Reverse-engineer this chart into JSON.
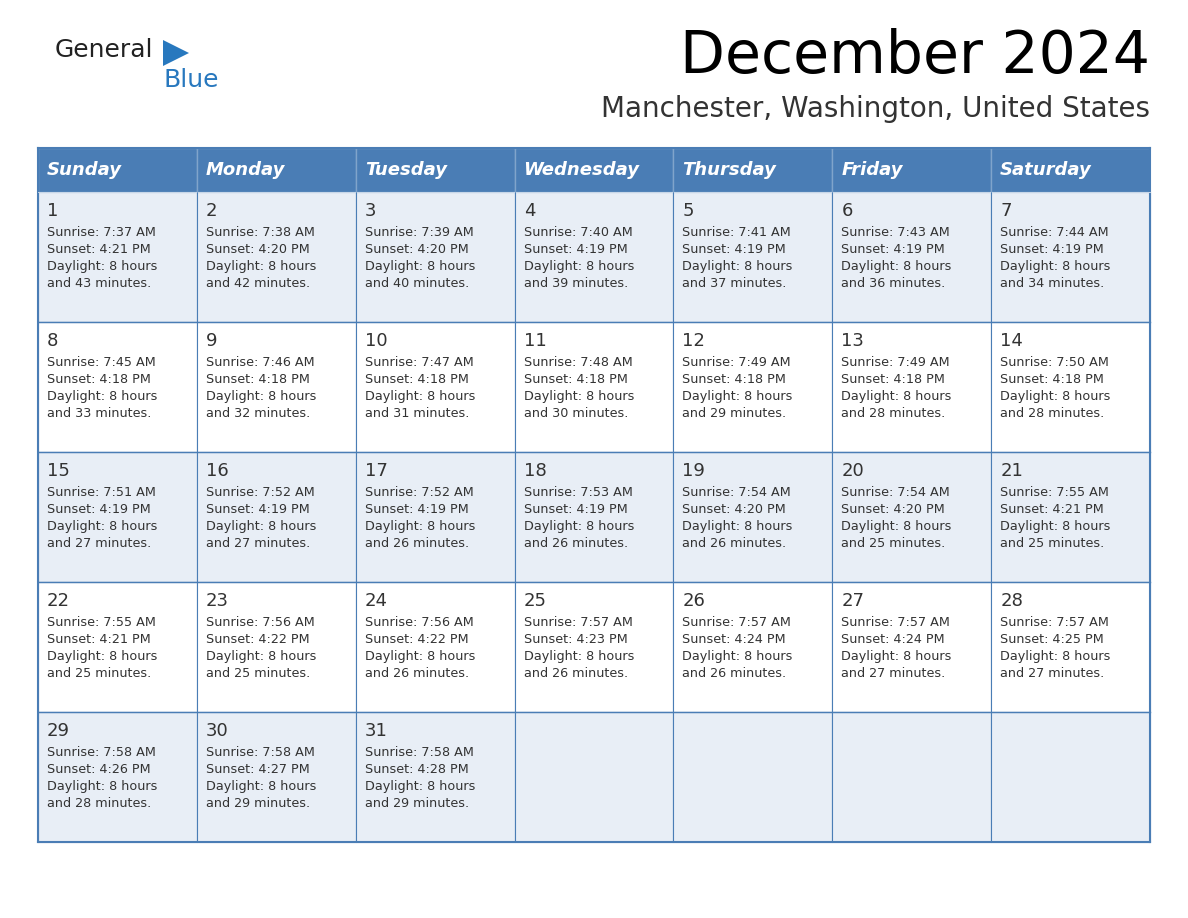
{
  "title": "December 2024",
  "subtitle": "Manchester, Washington, United States",
  "header_color": "#4a7db5",
  "header_text_color": "#ffffff",
  "cell_bg_even": "#e8eef6",
  "cell_bg_odd": "#ffffff",
  "border_color": "#4a7db5",
  "text_color": "#333333",
  "day_names": [
    "Sunday",
    "Monday",
    "Tuesday",
    "Wednesday",
    "Thursday",
    "Friday",
    "Saturday"
  ],
  "logo_general_color": "#222222",
  "logo_blue_color": "#2878be",
  "days_data": [
    {
      "day": 1,
      "col": 0,
      "row": 0,
      "sunrise": "7:37 AM",
      "sunset": "4:21 PM",
      "daylight": "8 hours and 43 minutes."
    },
    {
      "day": 2,
      "col": 1,
      "row": 0,
      "sunrise": "7:38 AM",
      "sunset": "4:20 PM",
      "daylight": "8 hours and 42 minutes."
    },
    {
      "day": 3,
      "col": 2,
      "row": 0,
      "sunrise": "7:39 AM",
      "sunset": "4:20 PM",
      "daylight": "8 hours and 40 minutes."
    },
    {
      "day": 4,
      "col": 3,
      "row": 0,
      "sunrise": "7:40 AM",
      "sunset": "4:19 PM",
      "daylight": "8 hours and 39 minutes."
    },
    {
      "day": 5,
      "col": 4,
      "row": 0,
      "sunrise": "7:41 AM",
      "sunset": "4:19 PM",
      "daylight": "8 hours and 37 minutes."
    },
    {
      "day": 6,
      "col": 5,
      "row": 0,
      "sunrise": "7:43 AM",
      "sunset": "4:19 PM",
      "daylight": "8 hours and 36 minutes."
    },
    {
      "day": 7,
      "col": 6,
      "row": 0,
      "sunrise": "7:44 AM",
      "sunset": "4:19 PM",
      "daylight": "8 hours and 34 minutes."
    },
    {
      "day": 8,
      "col": 0,
      "row": 1,
      "sunrise": "7:45 AM",
      "sunset": "4:18 PM",
      "daylight": "8 hours and 33 minutes."
    },
    {
      "day": 9,
      "col": 1,
      "row": 1,
      "sunrise": "7:46 AM",
      "sunset": "4:18 PM",
      "daylight": "8 hours and 32 minutes."
    },
    {
      "day": 10,
      "col": 2,
      "row": 1,
      "sunrise": "7:47 AM",
      "sunset": "4:18 PM",
      "daylight": "8 hours and 31 minutes."
    },
    {
      "day": 11,
      "col": 3,
      "row": 1,
      "sunrise": "7:48 AM",
      "sunset": "4:18 PM",
      "daylight": "8 hours and 30 minutes."
    },
    {
      "day": 12,
      "col": 4,
      "row": 1,
      "sunrise": "7:49 AM",
      "sunset": "4:18 PM",
      "daylight": "8 hours and 29 minutes."
    },
    {
      "day": 13,
      "col": 5,
      "row": 1,
      "sunrise": "7:49 AM",
      "sunset": "4:18 PM",
      "daylight": "8 hours and 28 minutes."
    },
    {
      "day": 14,
      "col": 6,
      "row": 1,
      "sunrise": "7:50 AM",
      "sunset": "4:18 PM",
      "daylight": "8 hours and 28 minutes."
    },
    {
      "day": 15,
      "col": 0,
      "row": 2,
      "sunrise": "7:51 AM",
      "sunset": "4:19 PM",
      "daylight": "8 hours and 27 minutes."
    },
    {
      "day": 16,
      "col": 1,
      "row": 2,
      "sunrise": "7:52 AM",
      "sunset": "4:19 PM",
      "daylight": "8 hours and 27 minutes."
    },
    {
      "day": 17,
      "col": 2,
      "row": 2,
      "sunrise": "7:52 AM",
      "sunset": "4:19 PM",
      "daylight": "8 hours and 26 minutes."
    },
    {
      "day": 18,
      "col": 3,
      "row": 2,
      "sunrise": "7:53 AM",
      "sunset": "4:19 PM",
      "daylight": "8 hours and 26 minutes."
    },
    {
      "day": 19,
      "col": 4,
      "row": 2,
      "sunrise": "7:54 AM",
      "sunset": "4:20 PM",
      "daylight": "8 hours and 26 minutes."
    },
    {
      "day": 20,
      "col": 5,
      "row": 2,
      "sunrise": "7:54 AM",
      "sunset": "4:20 PM",
      "daylight": "8 hours and 25 minutes."
    },
    {
      "day": 21,
      "col": 6,
      "row": 2,
      "sunrise": "7:55 AM",
      "sunset": "4:21 PM",
      "daylight": "8 hours and 25 minutes."
    },
    {
      "day": 22,
      "col": 0,
      "row": 3,
      "sunrise": "7:55 AM",
      "sunset": "4:21 PM",
      "daylight": "8 hours and 25 minutes."
    },
    {
      "day": 23,
      "col": 1,
      "row": 3,
      "sunrise": "7:56 AM",
      "sunset": "4:22 PM",
      "daylight": "8 hours and 25 minutes."
    },
    {
      "day": 24,
      "col": 2,
      "row": 3,
      "sunrise": "7:56 AM",
      "sunset": "4:22 PM",
      "daylight": "8 hours and 26 minutes."
    },
    {
      "day": 25,
      "col": 3,
      "row": 3,
      "sunrise": "7:57 AM",
      "sunset": "4:23 PM",
      "daylight": "8 hours and 26 minutes."
    },
    {
      "day": 26,
      "col": 4,
      "row": 3,
      "sunrise": "7:57 AM",
      "sunset": "4:24 PM",
      "daylight": "8 hours and 26 minutes."
    },
    {
      "day": 27,
      "col": 5,
      "row": 3,
      "sunrise": "7:57 AM",
      "sunset": "4:24 PM",
      "daylight": "8 hours and 27 minutes."
    },
    {
      "day": 28,
      "col": 6,
      "row": 3,
      "sunrise": "7:57 AM",
      "sunset": "4:25 PM",
      "daylight": "8 hours and 27 minutes."
    },
    {
      "day": 29,
      "col": 0,
      "row": 4,
      "sunrise": "7:58 AM",
      "sunset": "4:26 PM",
      "daylight": "8 hours and 28 minutes."
    },
    {
      "day": 30,
      "col": 1,
      "row": 4,
      "sunrise": "7:58 AM",
      "sunset": "4:27 PM",
      "daylight": "8 hours and 29 minutes."
    },
    {
      "day": 31,
      "col": 2,
      "row": 4,
      "sunrise": "7:58 AM",
      "sunset": "4:28 PM",
      "daylight": "8 hours and 29 minutes."
    }
  ]
}
